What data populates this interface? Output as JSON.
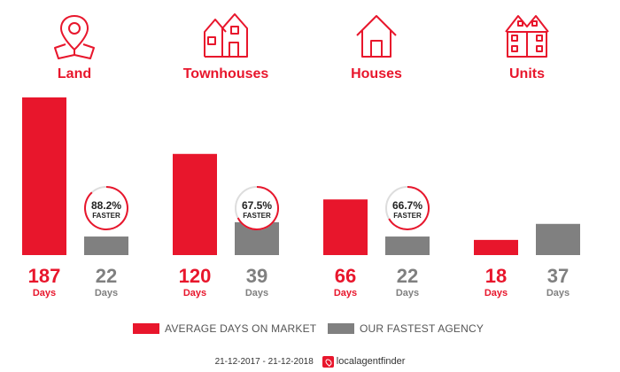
{
  "colors": {
    "accent": "#e8162c",
    "agency": "#808080",
    "text_dark": "#333333",
    "text_muted": "#555555"
  },
  "categories": [
    {
      "label": "Land",
      "icon": "location-pin-icon"
    },
    {
      "label": "Townhouses",
      "icon": "townhouse-icon"
    },
    {
      "label": "Houses",
      "icon": "house-icon"
    },
    {
      "label": "Units",
      "icon": "units-building-icon"
    }
  ],
  "chart_data": {
    "type": "bar",
    "categories": [
      "Land",
      "Townhouses",
      "Houses",
      "Units"
    ],
    "series": [
      {
        "name": "AVERAGE DAYS ON MARKET",
        "values": [
          187,
          120,
          66,
          18
        ]
      },
      {
        "name": "OUR FASTEST AGENCY",
        "values": [
          22,
          39,
          22,
          37
        ]
      }
    ],
    "unit_label": "Days",
    "faster_badges": [
      {
        "category": "Land",
        "percent": "88.2%",
        "fraction": 0.882,
        "label": "FASTER"
      },
      {
        "category": "Townhouses",
        "percent": "67.5%",
        "fraction": 0.675,
        "label": "FASTER"
      },
      {
        "category": "Houses",
        "percent": "66.7%",
        "fraction": 0.667,
        "label": "FASTER"
      }
    ],
    "ylim": [
      0,
      187
    ],
    "grid": false,
    "legend_position": "bottom"
  },
  "legend": [
    {
      "label": "AVERAGE DAYS ON MARKET",
      "color": "#e8162c"
    },
    {
      "label": "OUR FASTEST AGENCY",
      "color": "#808080"
    }
  ],
  "footer": {
    "date_range": "21-12-2017 - 21-12-2018",
    "logo_text": "localagentfinder"
  }
}
